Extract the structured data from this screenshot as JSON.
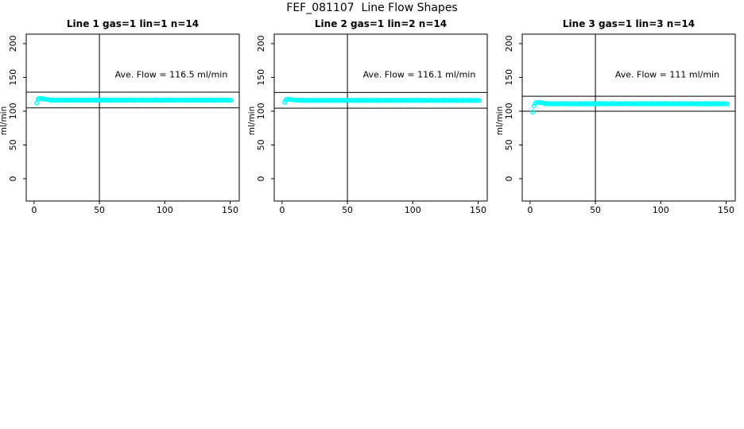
{
  "page": {
    "title": "FEF_081107  Line Flow Shapes"
  },
  "chart_data": [
    {
      "type": "scatter",
      "title": "Line 1 gas=1 lin=1 n=14",
      "annotation": "Ave. Flow =  116.5  ml/min",
      "ave_flow_ml_min": 116.5,
      "xlabel": "",
      "ylabel": "ml/min",
      "x_ticks": [
        0,
        50,
        100,
        150
      ],
      "y_ticks": [
        0,
        50,
        100,
        150,
        200
      ],
      "xlim": [
        -6,
        157
      ],
      "ylim": [
        -33,
        214
      ],
      "grid": false,
      "ref_lines_y": [
        128.2,
        104.9
      ],
      "vline_x": 50,
      "marker": "open-circle",
      "marker_color": "#00FFFF",
      "ann_pos": {
        "x": 105,
        "y": 150
      },
      "x_start": 2,
      "x_step": 1,
      "y": [
        112.0,
        117.8,
        118.6,
        118.9,
        118.6,
        118.2,
        117.8,
        117.5,
        117.2,
        117.0,
        116.6,
        116.1,
        116.8,
        115.9,
        116.3,
        116.5,
        115.8,
        116.7,
        116.2,
        116.0,
        116.6,
        116.1,
        116.8,
        115.9,
        116.3,
        116.5,
        115.8,
        116.7,
        116.2,
        116.0,
        116.6,
        116.1,
        116.8,
        115.9,
        116.3,
        116.5,
        115.8,
        116.7,
        116.2,
        116.0,
        116.6,
        116.1,
        116.8,
        115.9,
        116.3,
        116.5,
        115.8,
        116.7,
        116.2,
        116.0,
        116.6,
        116.1,
        116.8,
        115.9,
        116.3,
        116.5,
        115.8,
        116.7,
        116.2,
        116.0,
        116.6,
        116.1,
        116.8,
        115.9,
        116.3,
        116.5,
        115.8,
        116.7,
        116.2,
        116.0,
        116.6,
        116.1,
        116.8,
        115.9,
        116.3,
        116.5,
        115.8,
        116.7,
        116.2,
        116.0,
        116.6,
        116.1,
        116.8,
        115.9,
        116.3,
        116.5,
        115.8,
        116.7,
        116.2,
        116.0,
        116.6,
        116.1,
        116.8,
        115.9,
        116.3,
        116.5,
        115.8,
        116.7,
        116.2,
        116.0,
        116.6,
        116.1,
        116.8,
        115.9,
        116.3,
        116.5,
        115.8,
        116.7,
        116.2,
        116.0,
        116.6,
        116.1,
        116.8,
        115.9,
        116.3,
        116.5,
        115.8,
        116.7,
        116.2,
        116.0,
        116.6,
        116.1,
        116.8,
        115.9,
        116.3,
        116.5,
        115.8,
        116.7,
        116.2,
        116.0,
        116.6,
        116.1,
        116.8,
        115.9,
        116.3,
        116.5,
        115.8,
        116.7,
        116.2,
        116.0,
        116.6,
        116.1,
        116.8,
        115.9,
        116.3,
        116.5,
        115.8,
        116.7,
        116.2,
        116.0
      ]
    },
    {
      "type": "scatter",
      "title": "Line 2 gas=1 lin=2 n=14",
      "annotation": "Ave. Flow =  116.1  ml/min",
      "ave_flow_ml_min": 116.1,
      "xlabel": "",
      "ylabel": "ml/min",
      "x_ticks": [
        0,
        50,
        100,
        150
      ],
      "y_ticks": [
        0,
        50,
        100,
        150,
        200
      ],
      "xlim": [
        -6,
        157
      ],
      "ylim": [
        -33,
        214
      ],
      "grid": false,
      "ref_lines_y": [
        127.7,
        104.5
      ],
      "vline_x": 50,
      "marker": "open-circle",
      "marker_color": "#00FFFF",
      "ann_pos": {
        "x": 105,
        "y": 150
      },
      "x_start": 2,
      "x_step": 1,
      "y": [
        113.0,
        116.8,
        117.4,
        117.6,
        117.4,
        117.1,
        116.9,
        116.7,
        116.5,
        116.4,
        116.3,
        115.8,
        116.5,
        115.6,
        116.0,
        116.2,
        115.5,
        116.4,
        115.9,
        115.7,
        116.3,
        115.8,
        116.5,
        115.6,
        116.0,
        116.2,
        115.5,
        116.4,
        115.9,
        115.7,
        116.3,
        115.8,
        116.5,
        115.6,
        116.0,
        116.2,
        115.5,
        116.4,
        115.9,
        115.7,
        116.3,
        115.8,
        116.5,
        115.6,
        116.0,
        116.2,
        115.5,
        116.4,
        115.9,
        115.7,
        116.3,
        115.8,
        116.5,
        115.6,
        116.0,
        116.2,
        115.5,
        116.4,
        115.9,
        115.7,
        116.3,
        115.8,
        116.5,
        115.6,
        116.0,
        116.2,
        115.5,
        116.4,
        115.9,
        115.7,
        116.3,
        115.8,
        116.5,
        115.6,
        116.0,
        116.2,
        115.5,
        116.4,
        115.9,
        115.7,
        116.3,
        115.8,
        116.5,
        115.6,
        116.0,
        116.2,
        115.5,
        116.4,
        115.9,
        115.7,
        116.3,
        115.8,
        116.5,
        115.6,
        116.0,
        116.2,
        115.5,
        116.4,
        115.9,
        115.7,
        116.3,
        115.8,
        116.5,
        115.6,
        116.0,
        116.2,
        115.5,
        116.4,
        115.9,
        115.7,
        116.3,
        115.8,
        116.5,
        115.6,
        116.0,
        116.2,
        115.5,
        116.4,
        115.9,
        115.7,
        116.3,
        115.8,
        116.5,
        115.6,
        116.0,
        116.2,
        115.5,
        116.4,
        115.9,
        115.7,
        116.3,
        115.8,
        116.5,
        115.6,
        116.0,
        116.2,
        115.5,
        116.4,
        115.9,
        115.7,
        116.3,
        115.8,
        116.5,
        115.6,
        116.0,
        116.2,
        115.5,
        116.4,
        115.9,
        115.7
      ]
    },
    {
      "type": "scatter",
      "title": "Line 3 gas=1 lin=3 n=14",
      "annotation": "Ave. Flow =  111  ml/min",
      "ave_flow_ml_min": 111,
      "xlabel": "",
      "ylabel": "ml/min",
      "x_ticks": [
        0,
        50,
        100,
        150
      ],
      "y_ticks": [
        0,
        50,
        100,
        150,
        200
      ],
      "xlim": [
        -6,
        157
      ],
      "ylim": [
        -33,
        214
      ],
      "grid": false,
      "ref_lines_y": [
        122.1,
        99.9
      ],
      "vline_x": 50,
      "marker": "open-circle",
      "marker_color": "#00FFFF",
      "ann_pos": {
        "x": 105,
        "y": 150
      },
      "x_start": 2,
      "x_step": 1,
      "y": [
        98.5,
        107.5,
        111.5,
        112.8,
        113.0,
        112.8,
        112.5,
        112.2,
        112.0,
        111.8,
        111.3,
        110.8,
        111.5,
        110.6,
        111.0,
        111.2,
        110.5,
        111.4,
        110.9,
        110.7,
        111.3,
        110.8,
        111.5,
        110.6,
        111.0,
        111.2,
        110.5,
        111.4,
        110.9,
        110.7,
        111.3,
        110.8,
        111.5,
        110.6,
        111.0,
        111.2,
        110.5,
        111.4,
        110.9,
        110.7,
        111.3,
        110.8,
        111.5,
        110.6,
        111.0,
        111.2,
        110.5,
        111.4,
        110.9,
        110.7,
        111.3,
        110.8,
        111.5,
        110.6,
        111.0,
        111.2,
        110.5,
        111.4,
        110.9,
        110.7,
        111.3,
        110.8,
        111.5,
        110.6,
        111.0,
        111.2,
        110.5,
        111.4,
        110.9,
        110.7,
        111.3,
        110.8,
        111.5,
        110.6,
        111.0,
        111.2,
        110.5,
        111.4,
        110.9,
        110.7,
        111.3,
        110.8,
        111.5,
        110.6,
        111.0,
        111.2,
        110.5,
        111.4,
        110.9,
        110.7,
        111.3,
        110.8,
        111.5,
        110.6,
        111.0,
        111.2,
        110.5,
        111.4,
        110.9,
        110.7,
        111.3,
        110.8,
        111.5,
        110.6,
        111.0,
        111.2,
        110.5,
        111.4,
        110.9,
        110.7,
        111.3,
        110.8,
        111.5,
        110.6,
        111.0,
        111.2,
        110.5,
        111.4,
        110.9,
        110.7,
        111.3,
        110.8,
        111.5,
        110.6,
        111.0,
        111.2,
        110.5,
        111.4,
        110.9,
        110.7,
        111.3,
        110.8,
        111.5,
        110.6,
        111.0,
        111.2,
        110.5,
        111.4,
        110.9,
        110.7,
        111.3,
        110.8,
        111.5,
        110.6,
        111.0,
        111.2,
        110.5,
        111.4,
        110.9,
        110.7
      ]
    }
  ]
}
